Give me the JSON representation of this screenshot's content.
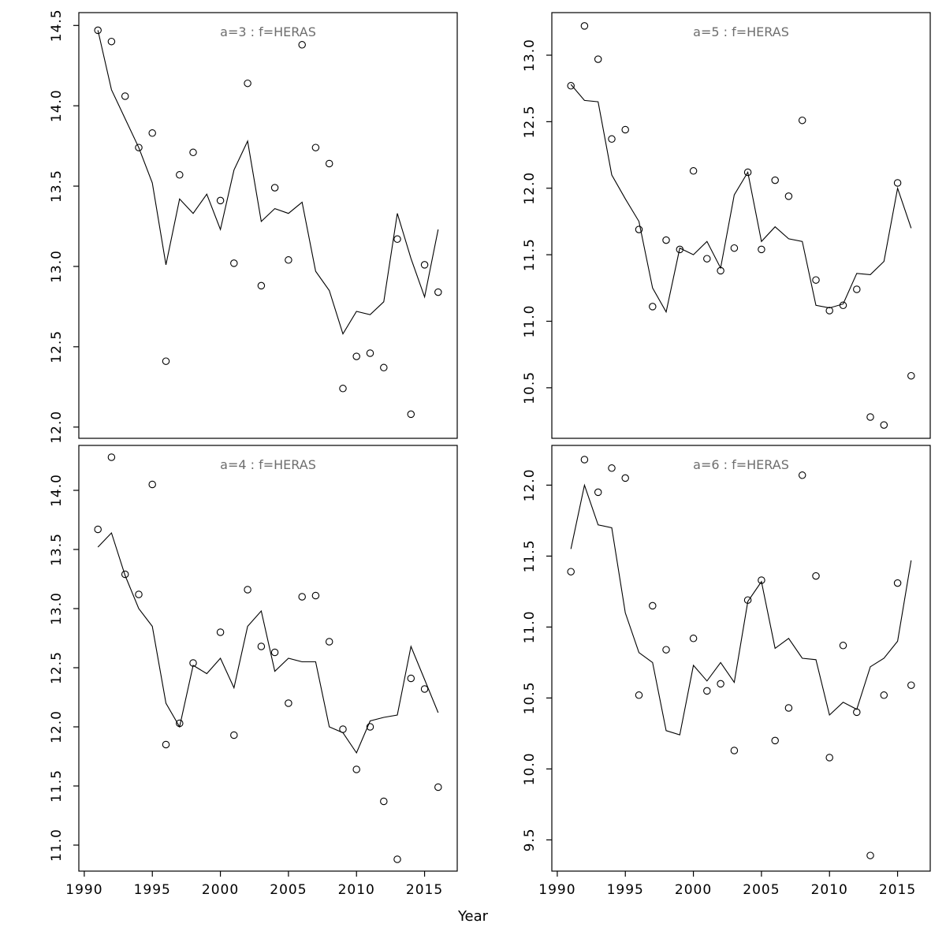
{
  "figure": {
    "xlabel": "Year"
  },
  "colors": {
    "title": "#6e6e6e",
    "axis": "#000000",
    "line": "#000000"
  },
  "chart_data": [
    {
      "type": "line",
      "title": "a=3  :  f=HERAS",
      "position": "top-left",
      "show_x_tick_labels": false,
      "xlim": [
        1989.6,
        2017.4
      ],
      "xticks": [
        1990,
        1995,
        2000,
        2005,
        2010,
        2015
      ],
      "ylim": [
        11.93,
        14.58
      ],
      "yticks": [
        12.0,
        12.5,
        13.0,
        13.5,
        14.0,
        14.5
      ],
      "x": [
        1991,
        1992,
        1993,
        1994,
        1995,
        1996,
        1997,
        1998,
        1999,
        2000,
        2001,
        2002,
        2003,
        2004,
        2005,
        2006,
        2007,
        2008,
        2009,
        2010,
        2011,
        2012,
        2013,
        2014,
        2015,
        2016
      ],
      "points": [
        14.47,
        14.4,
        14.06,
        13.74,
        13.83,
        12.41,
        13.57,
        13.71,
        null,
        13.41,
        13.02,
        14.14,
        12.88,
        13.49,
        13.04,
        14.38,
        13.74,
        13.64,
        12.24,
        12.44,
        12.46,
        12.37,
        13.17,
        12.08,
        13.01,
        12.84
      ],
      "line": [
        14.47,
        14.1,
        13.92,
        13.74,
        13.52,
        13.01,
        13.42,
        13.33,
        13.45,
        13.23,
        13.6,
        13.78,
        13.28,
        13.36,
        13.33,
        13.4,
        12.97,
        12.85,
        12.58,
        12.72,
        12.7,
        12.78,
        13.33,
        13.05,
        12.81,
        13.23
      ]
    },
    {
      "type": "line",
      "title": "a=5  :  f=HERAS",
      "position": "top-right",
      "show_x_tick_labels": false,
      "xlim": [
        1989.6,
        2017.4
      ],
      "xticks": [
        1990,
        1995,
        2000,
        2005,
        2010,
        2015
      ],
      "ylim": [
        10.12,
        13.32
      ],
      "yticks": [
        10.5,
        11.0,
        11.5,
        12.0,
        12.5,
        13.0
      ],
      "x": [
        1991,
        1992,
        1993,
        1994,
        1995,
        1996,
        1997,
        1998,
        1999,
        2000,
        2001,
        2002,
        2003,
        2004,
        2005,
        2006,
        2007,
        2008,
        2009,
        2010,
        2011,
        2012,
        2013,
        2014,
        2015,
        2016
      ],
      "points": [
        12.77,
        13.22,
        12.97,
        12.37,
        12.44,
        11.69,
        11.11,
        11.61,
        11.54,
        12.13,
        11.47,
        11.38,
        11.55,
        12.12,
        11.54,
        12.06,
        11.94,
        12.51,
        11.31,
        11.08,
        11.12,
        11.24,
        10.28,
        10.22,
        12.04,
        10.59
      ],
      "line": [
        12.78,
        12.66,
        12.65,
        12.1,
        11.92,
        11.75,
        11.25,
        11.07,
        11.55,
        11.5,
        11.6,
        11.4,
        11.95,
        12.12,
        11.6,
        11.71,
        11.62,
        11.6,
        11.12,
        11.1,
        11.13,
        11.36,
        11.35,
        11.45,
        12.0,
        11.7
      ]
    },
    {
      "type": "line",
      "title": "a=4  :  f=HERAS",
      "position": "bottom-left",
      "show_x_tick_labels": true,
      "xlim": [
        1989.6,
        2017.4
      ],
      "xticks": [
        1990,
        1995,
        2000,
        2005,
        2010,
        2015
      ],
      "ylim": [
        10.78,
        14.38
      ],
      "yticks": [
        11.0,
        11.5,
        12.0,
        12.5,
        13.0,
        13.5,
        14.0
      ],
      "x": [
        1991,
        1992,
        1993,
        1994,
        1995,
        1996,
        1997,
        1998,
        1999,
        2000,
        2001,
        2002,
        2003,
        2004,
        2005,
        2006,
        2007,
        2008,
        2009,
        2010,
        2011,
        2012,
        2013,
        2014,
        2015,
        2016
      ],
      "points": [
        13.67,
        14.28,
        13.29,
        13.12,
        14.05,
        11.85,
        12.03,
        12.54,
        null,
        12.8,
        11.93,
        13.16,
        12.68,
        12.63,
        12.2,
        13.1,
        13.11,
        12.72,
        11.98,
        11.64,
        12.0,
        11.37,
        10.88,
        12.41,
        12.32,
        11.49
      ],
      "line": [
        13.52,
        13.64,
        13.28,
        13.0,
        12.85,
        12.2,
        12.0,
        12.52,
        12.45,
        12.58,
        12.33,
        12.85,
        12.98,
        12.47,
        12.58,
        12.55,
        12.55,
        12.0,
        11.95,
        11.78,
        12.05,
        12.08,
        12.1,
        12.68,
        12.4,
        12.12
      ]
    },
    {
      "type": "line",
      "title": "a=6  :  f=HERAS",
      "position": "bottom-right",
      "show_x_tick_labels": true,
      "xlim": [
        1989.6,
        2017.4
      ],
      "xticks": [
        1990,
        1995,
        2000,
        2005,
        2010,
        2015
      ],
      "ylim": [
        9.28,
        12.28
      ],
      "yticks": [
        9.5,
        10.0,
        10.5,
        11.0,
        11.5,
        12.0
      ],
      "x": [
        1991,
        1992,
        1993,
        1994,
        1995,
        1996,
        1997,
        1998,
        1999,
        2000,
        2001,
        2002,
        2003,
        2004,
        2005,
        2006,
        2007,
        2008,
        2009,
        2010,
        2011,
        2012,
        2013,
        2014,
        2015,
        2016
      ],
      "points": [
        11.39,
        12.18,
        11.95,
        12.12,
        12.05,
        10.52,
        11.15,
        10.84,
        null,
        10.92,
        10.55,
        10.6,
        10.13,
        11.19,
        11.33,
        10.2,
        10.43,
        12.07,
        11.36,
        10.08,
        10.87,
        10.4,
        9.39,
        10.52,
        11.31,
        10.59
      ],
      "line": [
        11.55,
        12.0,
        11.72,
        11.7,
        11.1,
        10.82,
        10.75,
        10.27,
        10.24,
        10.73,
        10.62,
        10.75,
        10.61,
        11.18,
        11.32,
        10.85,
        10.92,
        10.78,
        10.77,
        10.38,
        10.47,
        10.42,
        10.72,
        10.78,
        10.9,
        11.47
      ]
    }
  ]
}
